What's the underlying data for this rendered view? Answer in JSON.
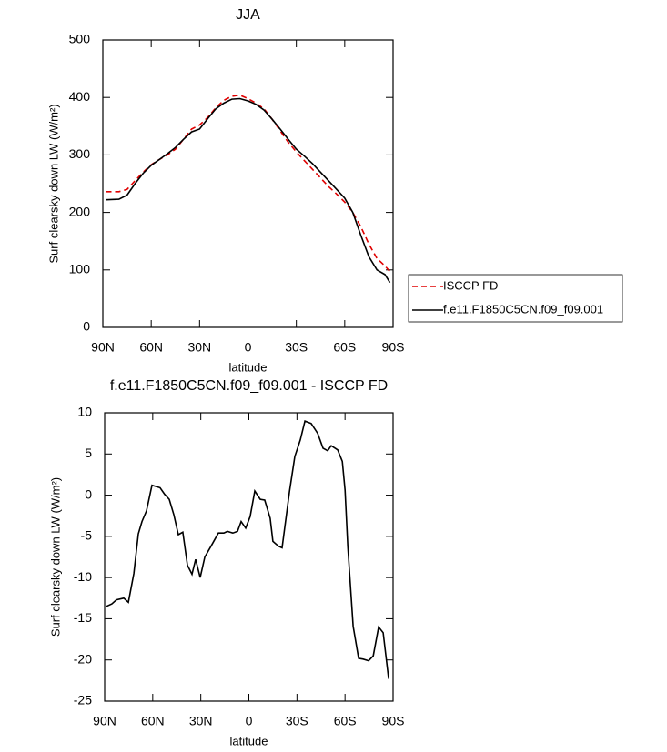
{
  "chart_data": [
    {
      "type": "line",
      "title": "JJA",
      "xlabel": "latitude",
      "ylabel": "Surf clearsky down LW (W/m²)",
      "xlim": [
        90,
        -90
      ],
      "ylim": [
        0,
        500
      ],
      "xticks": [
        {
          "value": 90,
          "label": "90N"
        },
        {
          "value": 60,
          "label": "60N"
        },
        {
          "value": 30,
          "label": "30N"
        },
        0,
        {
          "value": -30,
          "label": "30S"
        },
        {
          "value": -60,
          "label": "60S"
        },
        {
          "value": -90,
          "label": "90S"
        }
      ],
      "yticks": [
        0,
        100,
        200,
        300,
        400,
        500
      ],
      "legend": "right",
      "series": [
        {
          "name": "ISCCP FD",
          "color": "#e00000",
          "dash": true,
          "x": [
            88,
            80,
            75,
            70,
            65,
            60,
            55,
            50,
            45,
            40,
            35,
            30,
            25,
            20,
            15,
            10,
            5,
            0,
            -5,
            -10,
            -15,
            -20,
            -25,
            -30,
            -35,
            -40,
            -45,
            -50,
            -55,
            -60,
            -65,
            -70,
            -75,
            -80,
            -85,
            -88
          ],
          "values": [
            236,
            236,
            240,
            255,
            270,
            283,
            292,
            300,
            310,
            327,
            345,
            352,
            365,
            382,
            395,
            402,
            404,
            398,
            390,
            380,
            362,
            342,
            322,
            305,
            290,
            275,
            260,
            245,
            232,
            218,
            200,
            175,
            145,
            120,
            107,
            97
          ]
        },
        {
          "name": "f.e11.F1850C5CN.f09_f09.001",
          "color": "#000000",
          "dash": false,
          "x": [
            88,
            80,
            75,
            70,
            65,
            60,
            55,
            50,
            45,
            40,
            35,
            30,
            25,
            20,
            15,
            10,
            5,
            0,
            -5,
            -10,
            -15,
            -20,
            -25,
            -30,
            -35,
            -40,
            -45,
            -50,
            -55,
            -60,
            -65,
            -70,
            -75,
            -80,
            -85,
            -88
          ],
          "values": [
            222,
            223,
            230,
            250,
            268,
            282,
            292,
            302,
            313,
            327,
            340,
            345,
            363,
            380,
            390,
            397,
            398,
            394,
            388,
            378,
            362,
            345,
            327,
            310,
            298,
            285,
            270,
            255,
            240,
            225,
            200,
            160,
            123,
            100,
            92,
            78
          ]
        }
      ]
    },
    {
      "type": "line",
      "title": "f.e11.F1850C5CN.f09_f09.001 - ISCCP FD",
      "xlabel": "latitude",
      "ylabel": "Surf clearsky down LW (W/m²)",
      "xlim": [
        90,
        -90
      ],
      "ylim": [
        -25,
        10
      ],
      "xticks": [
        {
          "value": 90,
          "label": "90N"
        },
        {
          "value": 60,
          "label": "60N"
        },
        {
          "value": 30,
          "label": "30N"
        },
        0,
        {
          "value": -30,
          "label": "30S"
        },
        {
          "value": -60,
          "label": "60S"
        },
        {
          "value": -90,
          "label": "90S"
        }
      ],
      "yticks": [
        -25,
        -20,
        -15,
        -10,
        -5,
        0,
        5,
        10
      ],
      "series": [
        {
          "name": "f.e11.F1850C5CN.f09_f09.001 - ISCCP FD",
          "color": "#000000",
          "dash": false,
          "x": [
            88.9,
            85.5,
            82.6,
            78.1,
            75.2,
            71.8,
            69,
            66.7,
            63.9,
            60.5,
            55.4,
            52.5,
            49.7,
            46.8,
            44,
            41.2,
            38.3,
            35.5,
            33.2,
            30.4,
            27.5,
            23.6,
            19,
            15.6,
            13.4,
            10,
            7.1,
            4.8,
            2,
            -0.8,
            -3.7,
            -7.1,
            -9.9,
            -13.3,
            -15,
            -18.5,
            -20.7,
            -25.3,
            -28.7,
            -32.1,
            -35,
            -38.9,
            -42.9,
            -46.3,
            -49.2,
            -51.4,
            -55.4,
            -58.3,
            -60,
            -61.7,
            -65.1,
            -68.5,
            -71.3,
            -74.7,
            -77.6,
            -81,
            -83.8,
            -87.2
          ],
          "values": [
            -13.5,
            -13.2,
            -12.7,
            -12.5,
            -13,
            -9.5,
            -4.7,
            -3.2,
            -1.9,
            1.2,
            0.9,
            0.1,
            -0.5,
            -2.4,
            -4.8,
            -4.5,
            -8.5,
            -9.6,
            -7.8,
            -10,
            -7.5,
            -6.2,
            -4.6,
            -4.6,
            -4.4,
            -4.6,
            -4.4,
            -3.2,
            -4,
            -2.6,
            0.5,
            -0.5,
            -0.6,
            -2.8,
            -5.6,
            -6.2,
            -6.4,
            0.4,
            4.7,
            6.7,
            9,
            8.7,
            7.5,
            5.7,
            5.4,
            6,
            5.5,
            4.1,
            0.6,
            -6.2,
            -15.9,
            -19.8,
            -19.9,
            -20.1,
            -19.5,
            -16,
            -16.7,
            -22.3
          ]
        }
      ]
    }
  ]
}
